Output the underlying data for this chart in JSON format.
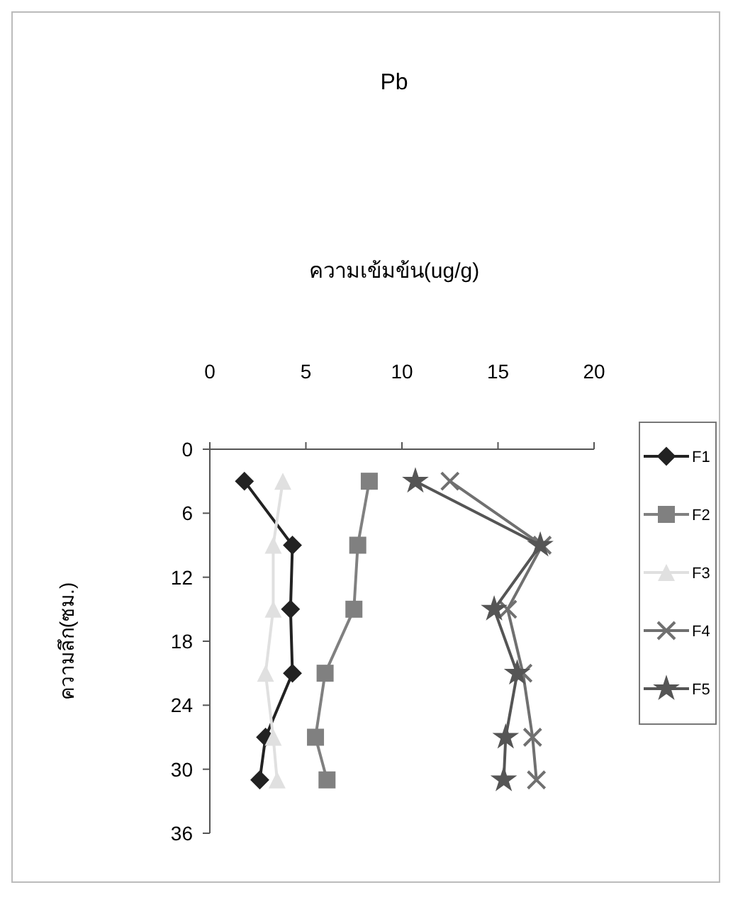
{
  "chart_data": {
    "type": "line",
    "title": "Pb",
    "xlabel": "ความเข้มข้น(ug/g)",
    "ylabel": "ความลึก(ซม.)",
    "xlim": [
      0,
      20
    ],
    "xticks": [
      0,
      5,
      10,
      15,
      20
    ],
    "ylim": [
      36,
      0
    ],
    "yticks": [
      0,
      6,
      12,
      18,
      24,
      30,
      36
    ],
    "legend": "right",
    "grid": false,
    "series": [
      {
        "name": "F1",
        "color": "#222222",
        "marker": "diamond",
        "x": [
          1.8,
          4.3,
          4.2,
          4.3,
          2.9,
          2.6
        ],
        "values": [
          3,
          9,
          15,
          21,
          27,
          31
        ]
      },
      {
        "name": "F2",
        "color": "#808080",
        "marker": "square",
        "x": [
          8.3,
          7.7,
          7.5,
          6.0,
          5.5,
          6.1
        ],
        "values": [
          3,
          9,
          15,
          21,
          27,
          31
        ]
      },
      {
        "name": "F3",
        "color": "#e0e0e0",
        "marker": "triangle",
        "x": [
          3.8,
          3.3,
          3.3,
          2.9,
          3.3,
          3.5
        ],
        "values": [
          3,
          9,
          15,
          21,
          27,
          31
        ]
      },
      {
        "name": "F4",
        "color": "#707070",
        "marker": "cross",
        "x": [
          12.5,
          17.3,
          15.5,
          16.3,
          16.8,
          17.0
        ],
        "values": [
          3,
          9,
          15,
          21,
          27,
          31
        ]
      },
      {
        "name": "F5",
        "color": "#555555",
        "marker": "star",
        "x": [
          10.7,
          17.2,
          14.8,
          16.0,
          15.4,
          15.3
        ],
        "values": [
          3,
          9,
          15,
          21,
          27,
          31
        ]
      }
    ]
  }
}
